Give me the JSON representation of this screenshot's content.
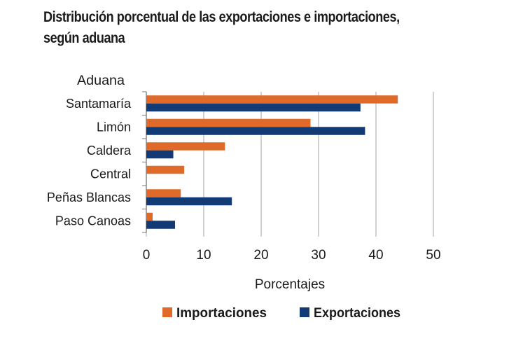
{
  "title": "Distribución porcentual de las exportaciones e importaciones,",
  "subtitle": "según aduana",
  "chart_data": {
    "type": "bar",
    "orientation": "horizontal",
    "y_axis_title": "Aduana",
    "xlabel": "Porcentajes",
    "categories": [
      "Santamaría",
      "Limón",
      "Caldera",
      "Central",
      "Peñas Blancas",
      "Paso Canoas"
    ],
    "xlim": [
      0,
      50
    ],
    "xticks": [
      "0",
      "10",
      "20",
      "30",
      "40",
      "50"
    ],
    "grid": true,
    "legend_position": "bottom",
    "series": [
      {
        "name": "Importaciones",
        "color": "#E06A2A",
        "values": [
          43.8,
          28.6,
          13.7,
          6.6,
          6.0,
          1.1
        ]
      },
      {
        "name": "Exportaciones",
        "color": "#123A75",
        "values": [
          37.3,
          38.1,
          4.7,
          0,
          14.9,
          5.0
        ]
      }
    ]
  }
}
